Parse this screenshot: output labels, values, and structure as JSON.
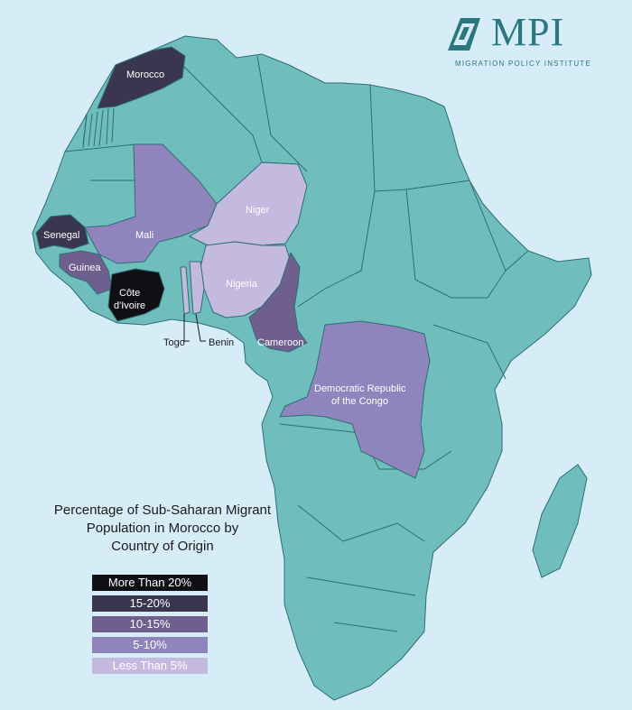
{
  "logo": {
    "name": "MPI",
    "subtitle": "MIGRATION POLICY INSTITUTE"
  },
  "legend": {
    "title": "Percentage of Sub-Saharan Migrant\nPopulation in Morocco by\nCountry of Origin",
    "items": [
      {
        "label": "More Than 20%",
        "color": "#0f0f14"
      },
      {
        "label": "15-20%",
        "color": "#3a3650"
      },
      {
        "label": "10-15%",
        "color": "#6f5f8f"
      },
      {
        "label": "5-10%",
        "color": "#9084bd"
      },
      {
        "label": "Less Than 5%",
        "color": "#c4b9de"
      }
    ]
  },
  "countries": {
    "morocco": {
      "label": "Morocco",
      "category": "15-20%"
    },
    "senegal": {
      "label": "Senegal",
      "category": "15-20%"
    },
    "mali": {
      "label": "Mali",
      "category": "5-10%"
    },
    "guinea": {
      "label": "Guinea",
      "category": "10-15%"
    },
    "cote_divoire": {
      "label_line1": "Côte",
      "label_line2": "d'Ivoire",
      "category": "More Than 20%"
    },
    "niger": {
      "label": "Niger",
      "category": "Less Than 5%"
    },
    "nigeria": {
      "label": "Nigeria",
      "category": "Less Than 5%"
    },
    "togo": {
      "label": "Togo",
      "category": "Less Than 5%"
    },
    "benin": {
      "label": "Benin",
      "category": "Less Than 5%"
    },
    "cameroon": {
      "label": "Cameroon",
      "category": "10-15%"
    },
    "drc": {
      "label_line1": "Democratic Republic",
      "label_line2": "of the Congo",
      "category": "5-10%"
    }
  },
  "colors": {
    "ocean": "#d6ecf7",
    "land": "#6fbdbd",
    "border": "#2d6f73",
    "brand": "#2c7680"
  }
}
